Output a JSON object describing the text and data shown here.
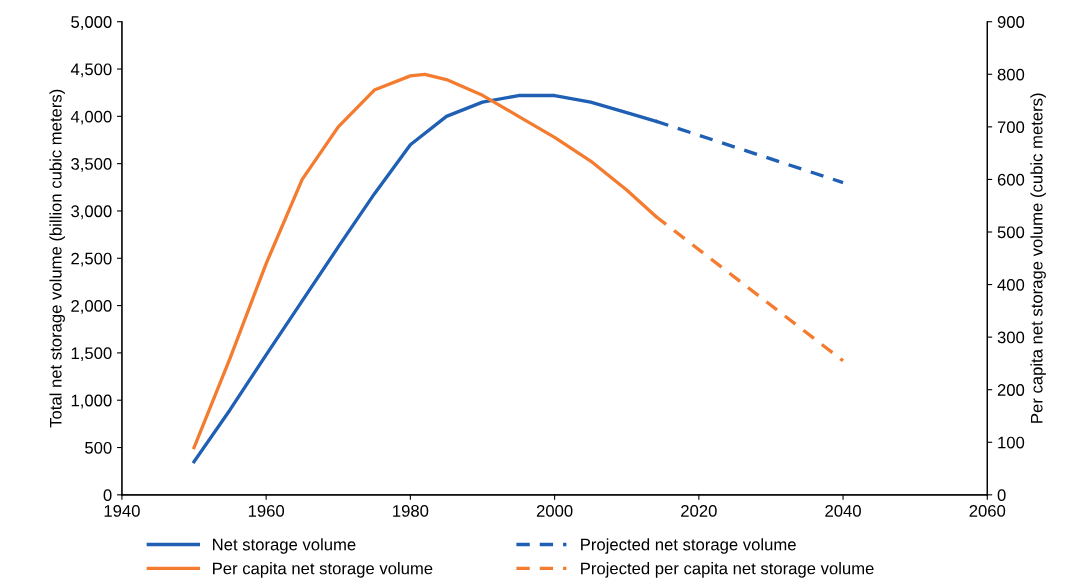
{
  "chart_data": {
    "type": "line",
    "ylabel": "Total net storage volume (billion cubic meters)",
    "y2label": "Per capita net storage volume (cubic meters)",
    "xlim": [
      1940,
      2060
    ],
    "xticks": [
      1940,
      1960,
      1980,
      2000,
      2020,
      2040,
      2060
    ],
    "ylim": [
      0,
      5000
    ],
    "yticks": [
      {
        "value": 0,
        "label": "0"
      },
      {
        "value": 500,
        "label": "500"
      },
      {
        "value": 1000,
        "label": "1,000"
      },
      {
        "value": 1500,
        "label": "1,500"
      },
      {
        "value": 2000,
        "label": "2,000"
      },
      {
        "value": 2500,
        "label": "2,500"
      },
      {
        "value": 3000,
        "label": "3,000"
      },
      {
        "value": 3500,
        "label": "3,500"
      },
      {
        "value": 4000,
        "label": "4,000"
      },
      {
        "value": 4500,
        "label": "4,500"
      },
      {
        "value": 5000,
        "label": "5,000"
      }
    ],
    "y2lim": [
      0,
      900
    ],
    "y2ticks": [
      0,
      100,
      200,
      300,
      400,
      500,
      600,
      700,
      800,
      900
    ],
    "grid": false,
    "legend": "bottom",
    "marker": "none",
    "series": [
      {
        "name": "Net storage volume",
        "color": "#1f5fb4",
        "line_style": "solid",
        "x": [
          1950,
          1955,
          1960,
          1965,
          1970,
          1975,
          1980,
          1985,
          1990,
          1995,
          2000,
          2005,
          2010,
          2014
        ],
        "values": [
          350,
          900,
          1480,
          2050,
          2620,
          3180,
          3700,
          4000,
          4150,
          4220,
          4220,
          4150,
          4040,
          3950
        ]
      },
      {
        "name": "Per capita net storage volume",
        "color": "#f47c30",
        "line_style": "solid",
        "axis": "y2",
        "x": [
          1950,
          1955,
          1960,
          1965,
          1970,
          1975,
          1980,
          1982,
          1985,
          1990,
          1995,
          2000,
          2005,
          2010,
          2014
        ],
        "values": [
          90,
          260,
          440,
          600,
          700,
          770,
          797,
          800,
          790,
          760,
          720,
          680,
          635,
          580,
          530
        ]
      },
      {
        "name": "Projected net storage volume",
        "color": "#1f5fb4",
        "line_style": "dashed",
        "x": [
          2014,
          2040
        ],
        "values": [
          3950,
          3300
        ]
      },
      {
        "name": "Projected per capita net storage volume",
        "color": "#f47c30",
        "line_style": "dashed",
        "axis": "y2",
        "x": [
          2014,
          2040
        ],
        "values": [
          530,
          255
        ]
      }
    ]
  }
}
